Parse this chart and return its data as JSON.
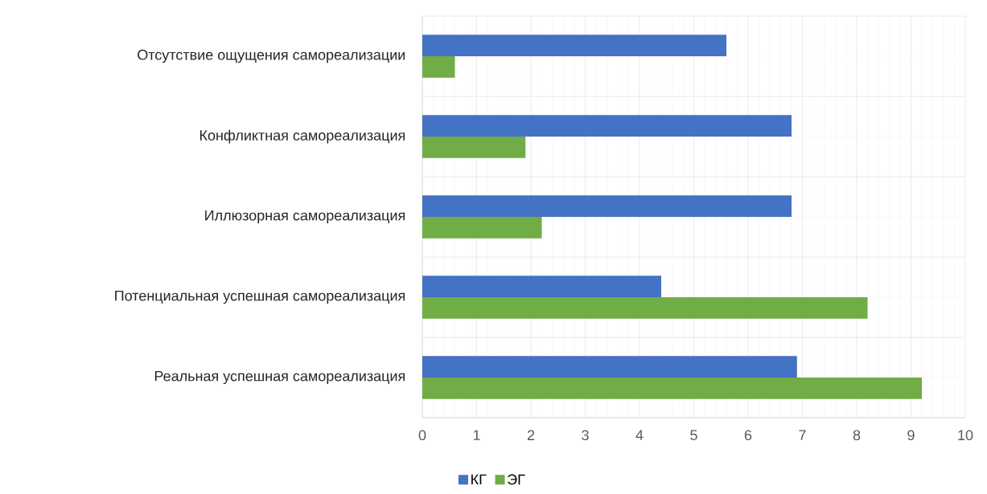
{
  "chart_data": {
    "type": "bar",
    "orientation": "horizontal",
    "categories": [
      "Отсутствие ощущения самореализации",
      "Конфликтная самореализация",
      "Иллюзорная самореализация",
      "Потенциальная успешная самореализация",
      "Реальная успешная самореализация"
    ],
    "series": [
      {
        "name": "КГ",
        "color": "#4472c4",
        "values": [
          5.6,
          6.8,
          6.8,
          4.4,
          6.9
        ]
      },
      {
        "name": "ЭГ",
        "color": "#70ad47",
        "values": [
          0.6,
          1.9,
          2.2,
          8.2,
          9.2
        ]
      }
    ],
    "xlim": [
      0,
      10
    ],
    "xticks": [
      0,
      1,
      2,
      3,
      4,
      5,
      6,
      7,
      8,
      9,
      10
    ],
    "grid": true,
    "legend": "bottom"
  }
}
